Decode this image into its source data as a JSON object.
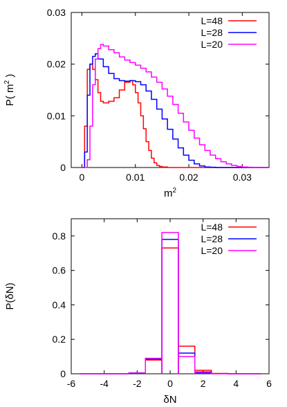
{
  "chart_data": [
    {
      "type": "line",
      "subtype": "step-histogram",
      "title": "",
      "xlabel": "m",
      "xlabel_superscript": "2",
      "ylabel": "P( m",
      "ylabel_superscript": "2",
      "ylabel_suffix": " )",
      "xlim": [
        -0.002,
        0.035
      ],
      "ylim": [
        0,
        0.03
      ],
      "xticks": [
        0,
        0.01,
        0.02,
        0.03
      ],
      "xtick_labels": [
        "0",
        "0.01",
        "0.02",
        "0.03"
      ],
      "yticks": [
        0,
        0.01,
        0.02,
        0.03
      ],
      "ytick_labels": [
        "0",
        "0.01",
        "0.02",
        "0.03"
      ],
      "grid": false,
      "legend_position": "top-right",
      "series": [
        {
          "name": "L=48",
          "color": "#ff0000",
          "x": [
            0,
            0.0005,
            0.001,
            0.0015,
            0.002,
            0.0025,
            0.003,
            0.0035,
            0.004,
            0.005,
            0.006,
            0.007,
            0.008,
            0.009,
            0.0095,
            0.01,
            0.0105,
            0.011,
            0.0115,
            0.012,
            0.0125,
            0.013,
            0.0135,
            0.014,
            0.0145,
            0.015,
            0.016
          ],
          "y": [
            0,
            0.008,
            0.019,
            0.02,
            0.019,
            0.017,
            0.0145,
            0.0128,
            0.0125,
            0.0128,
            0.0135,
            0.015,
            0.0165,
            0.0168,
            0.016,
            0.0145,
            0.0125,
            0.01,
            0.0075,
            0.005,
            0.0033,
            0.0018,
            0.0009,
            0.0004,
            0.0002,
            0.0001,
            0
          ]
        },
        {
          "name": "L=28",
          "color": "#0000ff",
          "x": [
            0,
            0.0005,
            0.001,
            0.0015,
            0.002,
            0.0025,
            0.003,
            0.004,
            0.005,
            0.006,
            0.007,
            0.008,
            0.009,
            0.01,
            0.011,
            0.012,
            0.013,
            0.014,
            0.015,
            0.016,
            0.017,
            0.018,
            0.019,
            0.02,
            0.021,
            0.022,
            0.023,
            0.024,
            0.025
          ],
          "y": [
            0,
            0.003,
            0.014,
            0.02,
            0.0215,
            0.022,
            0.021,
            0.0195,
            0.0182,
            0.0172,
            0.0168,
            0.0167,
            0.0168,
            0.0166,
            0.016,
            0.0148,
            0.0132,
            0.0113,
            0.0094,
            0.0074,
            0.0055,
            0.0038,
            0.0024,
            0.0014,
            0.0007,
            0.0003,
            0.0001,
            5e-05,
            0
          ]
        },
        {
          "name": "L=20",
          "color": "#ff00ff",
          "x": [
            0,
            0.001,
            0.0015,
            0.002,
            0.0025,
            0.003,
            0.0035,
            0.004,
            0.005,
            0.006,
            0.007,
            0.008,
            0.009,
            0.01,
            0.011,
            0.012,
            0.013,
            0.014,
            0.015,
            0.016,
            0.017,
            0.018,
            0.019,
            0.02,
            0.021,
            0.022,
            0.023,
            0.024,
            0.025,
            0.026,
            0.027,
            0.028,
            0.029,
            0.03,
            0.031,
            0.032,
            0.033
          ],
          "y": [
            0,
            0.0015,
            0.008,
            0.016,
            0.021,
            0.023,
            0.0238,
            0.0235,
            0.0228,
            0.0222,
            0.0214,
            0.0208,
            0.0203,
            0.0198,
            0.0192,
            0.0185,
            0.0175,
            0.0165,
            0.0152,
            0.0138,
            0.0122,
            0.0105,
            0.0088,
            0.0072,
            0.0057,
            0.0044,
            0.0033,
            0.0024,
            0.0017,
            0.0011,
            0.0007,
            0.0004,
            0.0002,
            0.0001,
            5e-05,
            2e-05,
            0
          ]
        }
      ]
    },
    {
      "type": "line",
      "subtype": "step-histogram",
      "title": "",
      "xlabel": "δN",
      "ylabel": "P(δN)",
      "xlim": [
        -6,
        6
      ],
      "ylim": [
        0,
        0.9
      ],
      "xticks": [
        -6,
        -4,
        -2,
        0,
        2,
        4,
        6
      ],
      "xtick_labels": [
        "-6",
        "-4",
        "-2",
        "0",
        "2",
        "4",
        "6"
      ],
      "yticks": [
        0,
        0.2,
        0.4,
        0.6,
        0.8
      ],
      "ytick_labels": [
        "0",
        "0.2",
        "0.4",
        "0.6",
        "0.8"
      ],
      "grid": false,
      "legend_position": "top-right",
      "bin_edges": [
        -5.5,
        -4.5,
        -3.5,
        -2.5,
        -1.5,
        -0.5,
        0.5,
        1.5,
        2.5,
        3.5,
        4.5,
        5.5
      ],
      "series": [
        {
          "name": "L=48",
          "color": "#ff0000",
          "values": [
            0,
            0,
            0,
            0.005,
            0.08,
            0.73,
            0.16,
            0.02,
            0.002,
            0,
            0
          ]
        },
        {
          "name": "L=28",
          "color": "#0000ff",
          "values": [
            0,
            0,
            0,
            0.005,
            0.085,
            0.78,
            0.12,
            0.01,
            0.001,
            0,
            0
          ]
        },
        {
          "name": "L=20",
          "color": "#ff00ff",
          "values": [
            0,
            0,
            0,
            0.004,
            0.09,
            0.82,
            0.1,
            0.005,
            0,
            0,
            0
          ]
        }
      ]
    }
  ]
}
